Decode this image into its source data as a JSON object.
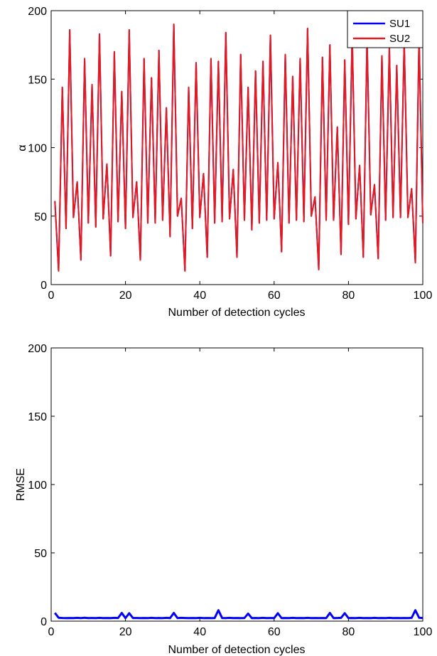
{
  "chart_data": [
    {
      "type": "line",
      "xlabel": "Number of detection cycles",
      "ylabel": "α",
      "xlim": [
        0,
        100
      ],
      "ylim": [
        0,
        200
      ],
      "xticks": [
        "0",
        "20",
        "40",
        "60",
        "80",
        "100"
      ],
      "yticks": [
        "0",
        "50",
        "100",
        "150",
        "200"
      ],
      "legend": {
        "placement": "top-right",
        "entries": [
          "SU1",
          "SU2"
        ]
      },
      "colors": {
        "SU1": "#0000ff",
        "SU2": "#e41a1c"
      },
      "x": [
        1,
        2,
        3,
        4,
        5,
        6,
        7,
        8,
        9,
        10,
        11,
        12,
        13,
        14,
        15,
        16,
        17,
        18,
        19,
        20,
        21,
        22,
        23,
        24,
        25,
        26,
        27,
        28,
        29,
        30,
        31,
        32,
        33,
        34,
        35,
        36,
        37,
        38,
        39,
        40,
        41,
        42,
        43,
        44,
        45,
        46,
        47,
        48,
        49,
        50,
        51,
        52,
        53,
        54,
        55,
        56,
        57,
        58,
        59,
        60,
        61,
        62,
        63,
        64,
        65,
        66,
        67,
        68,
        69,
        70,
        71,
        72,
        73,
        74,
        75,
        76,
        77,
        78,
        79,
        80,
        81,
        82,
        83,
        84,
        85,
        86,
        87,
        88,
        89,
        90,
        91,
        92,
        93,
        94,
        95,
        96,
        97,
        98,
        99,
        100
      ],
      "series": [
        {
          "name": "SU1",
          "values": [
            61,
            10,
            144,
            41,
            186,
            49,
            75,
            18,
            165,
            45,
            146,
            42,
            183,
            48,
            88,
            21,
            170,
            46,
            141,
            41,
            186,
            49,
            75,
            18,
            165,
            45,
            151,
            45,
            171,
            47,
            129,
            35,
            190,
            50,
            63,
            10,
            144,
            41,
            162,
            49,
            81,
            20,
            165,
            45,
            163,
            46,
            184,
            48,
            84,
            20,
            168,
            47,
            144,
            40,
            156,
            45,
            163,
            47,
            182,
            48,
            89,
            24,
            168,
            45,
            152,
            47,
            165,
            46,
            187,
            50,
            64,
            11,
            166,
            47,
            175,
            47,
            115,
            22,
            164,
            44,
            182,
            48,
            87,
            20,
            179,
            51,
            73,
            19,
            167,
            47,
            173,
            49,
            160,
            49,
            177,
            49,
            70,
            16,
            181,
            45
          ]
        },
        {
          "name": "SU2",
          "values": [
            61,
            10,
            144,
            41,
            186,
            49,
            75,
            18,
            165,
            45,
            146,
            42,
            183,
            48,
            88,
            21,
            170,
            46,
            141,
            41,
            186,
            49,
            75,
            18,
            165,
            45,
            151,
            45,
            171,
            47,
            129,
            35,
            190,
            50,
            63,
            10,
            144,
            41,
            162,
            49,
            81,
            20,
            165,
            45,
            163,
            46,
            184,
            48,
            84,
            20,
            168,
            47,
            144,
            40,
            156,
            45,
            163,
            47,
            182,
            48,
            89,
            24,
            168,
            45,
            152,
            47,
            165,
            46,
            187,
            50,
            64,
            11,
            166,
            47,
            175,
            47,
            115,
            22,
            164,
            44,
            182,
            48,
            87,
            20,
            179,
            51,
            73,
            19,
            167,
            47,
            173,
            49,
            160,
            49,
            177,
            49,
            70,
            16,
            181,
            45
          ]
        }
      ]
    },
    {
      "type": "line",
      "xlabel": "Number of detection cycles",
      "ylabel": "RMSE",
      "xlim": [
        0,
        100
      ],
      "ylim": [
        0,
        200
      ],
      "xticks": [
        "0",
        "20",
        "40",
        "60",
        "80",
        "100"
      ],
      "yticks": [
        "0",
        "50",
        "100",
        "150",
        "200"
      ],
      "colors": {
        "line": "#0000ff"
      },
      "x": [
        1,
        2,
        3,
        4,
        5,
        6,
        7,
        8,
        9,
        10,
        11,
        12,
        13,
        14,
        15,
        16,
        17,
        18,
        19,
        20,
        21,
        22,
        23,
        24,
        25,
        26,
        27,
        28,
        29,
        30,
        31,
        32,
        33,
        34,
        35,
        36,
        37,
        38,
        39,
        40,
        41,
        42,
        43,
        44,
        45,
        46,
        47,
        48,
        49,
        50,
        51,
        52,
        53,
        54,
        55,
        56,
        57,
        58,
        59,
        60,
        61,
        62,
        63,
        64,
        65,
        66,
        67,
        68,
        69,
        70,
        71,
        72,
        73,
        74,
        75,
        76,
        77,
        78,
        79,
        80,
        81,
        82,
        83,
        84,
        85,
        86,
        87,
        88,
        89,
        90,
        91,
        92,
        93,
        94,
        95,
        96,
        97,
        98,
        99,
        100
      ],
      "series": [
        {
          "values": [
            6,
            2.5,
            2.3,
            2.2,
            2.3,
            2.2,
            2.4,
            2.2,
            2.5,
            2.2,
            2.3,
            2.2,
            2.4,
            2.2,
            2.3,
            2.2,
            2.4,
            2.3,
            6,
            2.2,
            5.8,
            2.3,
            2.3,
            2.2,
            2.3,
            2.2,
            2.4,
            2.2,
            2.3,
            2.2,
            2.4,
            2.2,
            6,
            2.2,
            2.4,
            2.3,
            2.2,
            2.3,
            2.2,
            2.4,
            2.2,
            2.3,
            2.2,
            2.3,
            8,
            2.3,
            2.2,
            2.4,
            2.2,
            2.3,
            2.2,
            2.3,
            5.5,
            2.2,
            2.3,
            2.2,
            2.4,
            2.2,
            2.3,
            2.2,
            5.8,
            2.2,
            2.3,
            2.2,
            2.4,
            2.2,
            2.3,
            2.2,
            2.4,
            2.2,
            2.3,
            2.2,
            2.3,
            2.2,
            6,
            2.2,
            2.3,
            2.4,
            5.8,
            2.2,
            2.3,
            2.2,
            2.4,
            2.2,
            2.3,
            2.2,
            2.4,
            2.2,
            2.3,
            2.2,
            2.4,
            2.2,
            2.3,
            2.2,
            2.3,
            2.2,
            2.4,
            8,
            2.5,
            2.3
          ]
        }
      ]
    }
  ]
}
